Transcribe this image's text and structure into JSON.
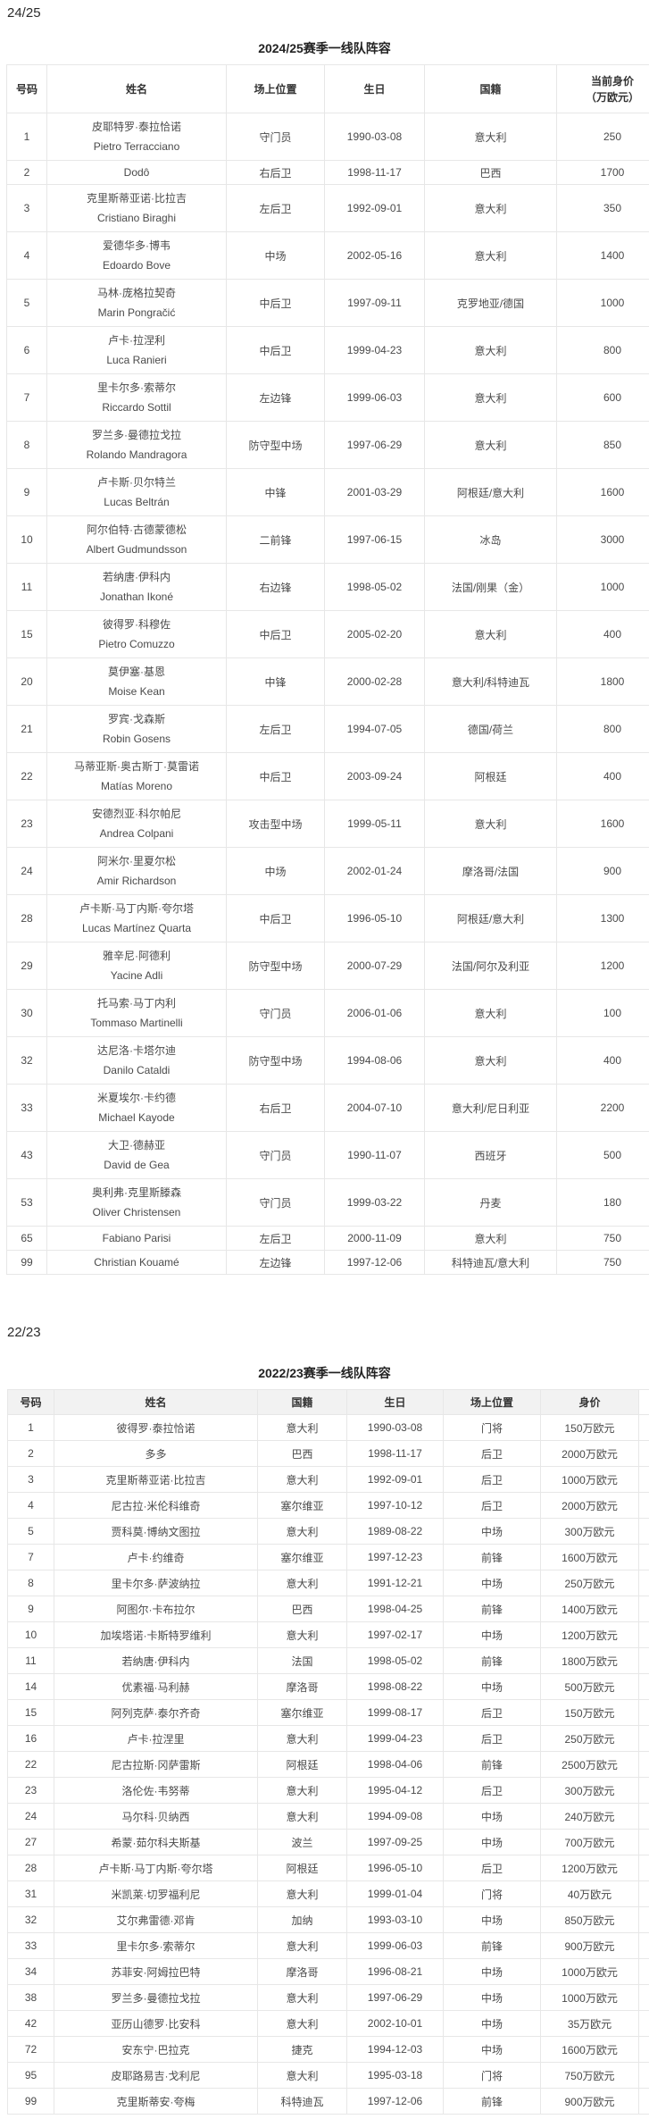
{
  "page": {
    "season1_heading": "24/25",
    "season2_heading": "22/23"
  },
  "colors": {
    "border": "#e7e7e7",
    "table2_header_bg": "#f2f2f2",
    "body_text": "#4a4a4a",
    "title_text": "#222222"
  },
  "table1": {
    "title": "2024/25赛季一线队阵容",
    "headers": [
      "号码",
      "姓名",
      "场上位置",
      "生日",
      "国籍",
      "当前身价\n（万欧元）"
    ],
    "rows": [
      {
        "no": "1",
        "name_cn": "皮耶特罗·泰拉恰诺",
        "name_en": "Pietro Terracciano",
        "pos": "守门员",
        "birth": "1990-03-08",
        "nat": "意大利",
        "value": "250"
      },
      {
        "no": "2",
        "name_cn": "",
        "name_en": "Dodô",
        "pos": "右后卫",
        "birth": "1998-11-17",
        "nat": "巴西",
        "value": "1700"
      },
      {
        "no": "3",
        "name_cn": "克里斯蒂亚诺·比拉吉",
        "name_en": "Cristiano Biraghi",
        "pos": "左后卫",
        "birth": "1992-09-01",
        "nat": "意大利",
        "value": "350"
      },
      {
        "no": "4",
        "name_cn": "爱德华多·博韦",
        "name_en": "Edoardo Bove",
        "pos": "中场",
        "birth": "2002-05-16",
        "nat": "意大利",
        "value": "1400"
      },
      {
        "no": "5",
        "name_cn": "马林·庞格拉契奇",
        "name_en": "Marin Pongračić",
        "pos": "中后卫",
        "birth": "1997-09-11",
        "nat": "克罗地亚/德国",
        "value": "1000"
      },
      {
        "no": "6",
        "name_cn": "卢卡·拉涅利",
        "name_en": "Luca Ranieri",
        "pos": "中后卫",
        "birth": "1999-04-23",
        "nat": "意大利",
        "value": "800"
      },
      {
        "no": "7",
        "name_cn": "里卡尔多·索蒂尔",
        "name_en": "Riccardo Sottil",
        "pos": "左边锋",
        "birth": "1999-06-03",
        "nat": "意大利",
        "value": "600"
      },
      {
        "no": "8",
        "name_cn": "罗兰多·曼德拉戈拉",
        "name_en": "Rolando Mandragora",
        "pos": "防守型中场",
        "birth": "1997-06-29",
        "nat": "意大利",
        "value": "850"
      },
      {
        "no": "9",
        "name_cn": "卢卡斯·贝尔特兰",
        "name_en": "Lucas Beltrán",
        "pos": "中锋",
        "birth": "2001-03-29",
        "nat": "阿根廷/意大利",
        "value": "1600"
      },
      {
        "no": "10",
        "name_cn": "阿尔伯特·古德蒙德松",
        "name_en": "Albert Gudmundsson",
        "pos": "二前锋",
        "birth": "1997-06-15",
        "nat": "冰岛",
        "value": "3000"
      },
      {
        "no": "11",
        "name_cn": "若纳唐·伊科内",
        "name_en": "Jonathan Ikoné",
        "pos": "右边锋",
        "birth": "1998-05-02",
        "nat": "法国/刚果（金）",
        "value": "1000"
      },
      {
        "no": "15",
        "name_cn": "彼得罗·科穆佐",
        "name_en": "Pietro Comuzzo",
        "pos": "中后卫",
        "birth": "2005-02-20",
        "nat": "意大利",
        "value": "400"
      },
      {
        "no": "20",
        "name_cn": "莫伊塞·基恩",
        "name_en": "Moise Kean",
        "pos": "中锋",
        "birth": "2000-02-28",
        "nat": "意大利/科特迪瓦",
        "value": "1800"
      },
      {
        "no": "21",
        "name_cn": "罗宾·戈森斯",
        "name_en": "Robin Gosens",
        "pos": "左后卫",
        "birth": "1994-07-05",
        "nat": "德国/荷兰",
        "value": "800"
      },
      {
        "no": "22",
        "name_cn": "马蒂亚斯·奥古斯丁·莫雷诺",
        "name_en": "Matías Moreno",
        "pos": "中后卫",
        "birth": "2003-09-24",
        "nat": "阿根廷",
        "value": "400"
      },
      {
        "no": "23",
        "name_cn": "安德烈亚·科尔帕尼",
        "name_en": "Andrea Colpani",
        "pos": "攻击型中场",
        "birth": "1999-05-11",
        "nat": "意大利",
        "value": "1600"
      },
      {
        "no": "24",
        "name_cn": "阿米尔·里夏尔松",
        "name_en": "Amir Richardson",
        "pos": "中场",
        "birth": "2002-01-24",
        "nat": "摩洛哥/法国",
        "value": "900"
      },
      {
        "no": "28",
        "name_cn": "卢卡斯·马丁内斯·夸尔塔",
        "name_en": "Lucas Martínez Quarta",
        "pos": "中后卫",
        "birth": "1996-05-10",
        "nat": "阿根廷/意大利",
        "value": "1300"
      },
      {
        "no": "29",
        "name_cn": "雅辛尼·阿德利",
        "name_en": "Yacine Adli",
        "pos": "防守型中场",
        "birth": "2000-07-29",
        "nat": "法国/阿尔及利亚",
        "value": "1200"
      },
      {
        "no": "30",
        "name_cn": "托马索·马丁内利",
        "name_en": "Tommaso Martinelli",
        "pos": "守门员",
        "birth": "2006-01-06",
        "nat": "意大利",
        "value": "100"
      },
      {
        "no": "32",
        "name_cn": "达尼洛·卡塔尔迪",
        "name_en": "Danilo Cataldi",
        "pos": "防守型中场",
        "birth": "1994-08-06",
        "nat": "意大利",
        "value": "400"
      },
      {
        "no": "33",
        "name_cn": "米夏埃尔·卡约德",
        "name_en": "Michael Kayode",
        "pos": "右后卫",
        "birth": "2004-07-10",
        "nat": "意大利/尼日利亚",
        "value": "2200"
      },
      {
        "no": "43",
        "name_cn": "大卫·德赫亚",
        "name_en": "David de Gea",
        "pos": "守门员",
        "birth": "1990-11-07",
        "nat": "西班牙",
        "value": "500"
      },
      {
        "no": "53",
        "name_cn": "奥利弗·克里斯滕森",
        "name_en": "Oliver Christensen",
        "pos": "守门员",
        "birth": "1999-03-22",
        "nat": "丹麦",
        "value": "180"
      },
      {
        "no": "65",
        "name_cn": "",
        "name_en": "Fabiano Parisi",
        "pos": "左后卫",
        "birth": "2000-11-09",
        "nat": "意大利",
        "value": "750"
      },
      {
        "no": "99",
        "name_cn": "",
        "name_en": "Christian Kouamé",
        "pos": "左边锋",
        "birth": "1997-12-06",
        "nat": "科特迪瓦/意大利",
        "value": "750"
      }
    ]
  },
  "table2": {
    "title": "2022/23赛季一线队阵容",
    "headers": [
      "号码",
      "姓名",
      "国籍",
      "生日",
      "场上位置",
      "身价"
    ],
    "rows": [
      {
        "no": "1",
        "name": "彼得罗·泰拉恰诺",
        "nat": "意大利",
        "birth": "1990-03-08",
        "pos": "门将",
        "value": "150万欧元"
      },
      {
        "no": "2",
        "name": "多多",
        "nat": "巴西",
        "birth": "1998-11-17",
        "pos": "后卫",
        "value": "2000万欧元"
      },
      {
        "no": "3",
        "name": "克里斯蒂亚诺·比拉吉",
        "nat": "意大利",
        "birth": "1992-09-01",
        "pos": "后卫",
        "value": "1000万欧元"
      },
      {
        "no": "4",
        "name": "尼古拉·米伦科维奇",
        "nat": "塞尔维亚",
        "birth": "1997-10-12",
        "pos": "后卫",
        "value": "2000万欧元"
      },
      {
        "no": "5",
        "name": "贾科莫·博纳文图拉",
        "nat": "意大利",
        "birth": "1989-08-22",
        "pos": "中场",
        "value": "300万欧元"
      },
      {
        "no": "7",
        "name": "卢卡·约维奇",
        "nat": "塞尔维亚",
        "birth": "1997-12-23",
        "pos": "前锋",
        "value": "1600万欧元"
      },
      {
        "no": "8",
        "name": "里卡尔多·萨波纳拉",
        "nat": "意大利",
        "birth": "1991-12-21",
        "pos": "中场",
        "value": "250万欧元"
      },
      {
        "no": "9",
        "name": "阿图尔·卡布拉尔",
        "nat": "巴西",
        "birth": "1998-04-25",
        "pos": "前锋",
        "value": "1400万欧元"
      },
      {
        "no": "10",
        "name": "加埃塔诺·卡斯特罗维利",
        "nat": "意大利",
        "birth": "1997-02-17",
        "pos": "中场",
        "value": "1200万欧元"
      },
      {
        "no": "11",
        "name": "若纳唐·伊科内",
        "nat": "法国",
        "birth": "1998-05-02",
        "pos": "前锋",
        "value": "1800万欧元"
      },
      {
        "no": "14",
        "name": "优素福·马利赫",
        "nat": "摩洛哥",
        "birth": "1998-08-22",
        "pos": "中场",
        "value": "500万欧元"
      },
      {
        "no": "15",
        "name": "阿列克萨·泰尔齐奇",
        "nat": "塞尔维亚",
        "birth": "1999-08-17",
        "pos": "后卫",
        "value": "150万欧元"
      },
      {
        "no": "16",
        "name": "卢卡·拉涅里",
        "nat": "意大利",
        "birth": "1999-04-23",
        "pos": "后卫",
        "value": "250万欧元"
      },
      {
        "no": "22",
        "name": "尼古拉斯·冈萨雷斯",
        "nat": "阿根廷",
        "birth": "1998-04-06",
        "pos": "前锋",
        "value": "2500万欧元"
      },
      {
        "no": "23",
        "name": "洛伦佐·韦努蒂",
        "nat": "意大利",
        "birth": "1995-04-12",
        "pos": "后卫",
        "value": "300万欧元"
      },
      {
        "no": "24",
        "name": "马尔科·贝纳西",
        "nat": "意大利",
        "birth": "1994-09-08",
        "pos": "中场",
        "value": "240万欧元"
      },
      {
        "no": "27",
        "name": "希蒙·茹尔科夫斯基",
        "nat": "波兰",
        "birth": "1997-09-25",
        "pos": "中场",
        "value": "700万欧元"
      },
      {
        "no": "28",
        "name": "卢卡斯·马丁内斯·夸尔塔",
        "nat": "阿根廷",
        "birth": "1996-05-10",
        "pos": "后卫",
        "value": "1200万欧元"
      },
      {
        "no": "31",
        "name": "米凯莱·切罗福利尼",
        "nat": "意大利",
        "birth": "1999-01-04",
        "pos": "门将",
        "value": "40万欧元"
      },
      {
        "no": "32",
        "name": "艾尔弗雷德·邓肯",
        "nat": "加纳",
        "birth": "1993-03-10",
        "pos": "中场",
        "value": "850万欧元"
      },
      {
        "no": "33",
        "name": "里卡尔多·索蒂尔",
        "nat": "意大利",
        "birth": "1999-06-03",
        "pos": "前锋",
        "value": "900万欧元"
      },
      {
        "no": "34",
        "name": "苏菲安·阿姆拉巴特",
        "nat": "摩洛哥",
        "birth": "1996-08-21",
        "pos": "中场",
        "value": "1000万欧元"
      },
      {
        "no": "38",
        "name": "罗兰多·曼德拉戈拉",
        "nat": "意大利",
        "birth": "1997-06-29",
        "pos": "中场",
        "value": "1000万欧元"
      },
      {
        "no": "42",
        "name": "亚历山德罗·比安科",
        "nat": "意大利",
        "birth": "2002-10-01",
        "pos": "中场",
        "value": "35万欧元"
      },
      {
        "no": "72",
        "name": "安东宁·巴拉克",
        "nat": "捷克",
        "birth": "1994-12-03",
        "pos": "中场",
        "value": "1600万欧元"
      },
      {
        "no": "95",
        "name": "皮耶路易吉·戈利尼",
        "nat": "意大利",
        "birth": "1995-03-18",
        "pos": "门将",
        "value": "750万欧元"
      },
      {
        "no": "99",
        "name": "克里斯蒂安·夸梅",
        "nat": "科特迪瓦",
        "birth": "1997-12-06",
        "pos": "前锋",
        "value": "900万欧元"
      }
    ]
  }
}
